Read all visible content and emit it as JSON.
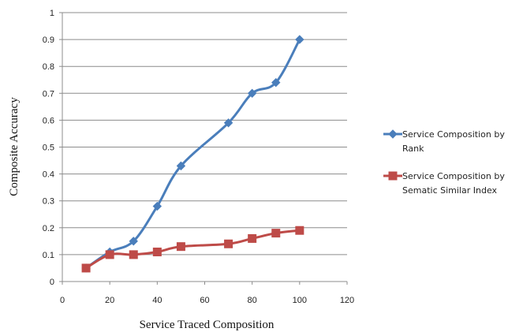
{
  "chart_data": {
    "type": "line",
    "title": "",
    "xlabel": "Service Traced Composition",
    "ylabel": "Composite Accuracy",
    "xlim": [
      0,
      120
    ],
    "ylim": [
      0,
      1
    ],
    "x_ticks": [
      "0",
      "20",
      "40",
      "60",
      "80",
      "100",
      "120"
    ],
    "y_ticks": [
      "0",
      "0.1",
      "0.2",
      "0.3",
      "0.4",
      "0.5",
      "0.6",
      "0.7",
      "0.8",
      "0.9",
      "1"
    ],
    "grid": "horizontal",
    "legend_position": "right",
    "series": [
      {
        "name": "Service Composition by Rank",
        "name_lines": [
          "Service Composition by",
          "Rank"
        ],
        "color": "#4a7ebb",
        "marker": "diamond",
        "x": [
          10,
          20,
          30,
          40,
          50,
          70,
          80,
          90,
          100
        ],
        "y": [
          0.05,
          0.11,
          0.15,
          0.28,
          0.43,
          0.59,
          0.7,
          0.74,
          0.9
        ]
      },
      {
        "name": "Service Composition by Sematic Similar Index",
        "name_lines": [
          "Service Composition by",
          "Sematic Similar Index"
        ],
        "color": "#be4b48",
        "marker": "square",
        "x": [
          10,
          20,
          30,
          40,
          50,
          70,
          80,
          90,
          100
        ],
        "y": [
          0.05,
          0.1,
          0.1,
          0.11,
          0.13,
          0.14,
          0.16,
          0.18,
          0.19
        ]
      }
    ]
  }
}
